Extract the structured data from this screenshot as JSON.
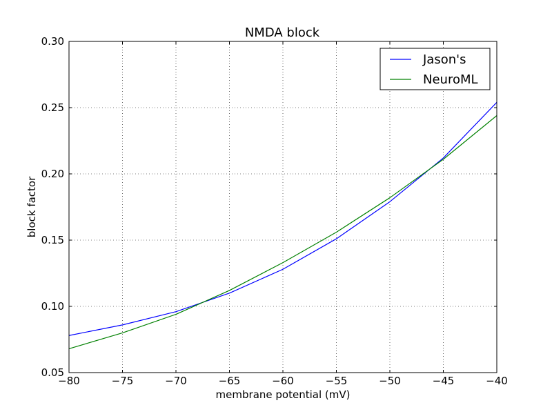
{
  "chart_data": {
    "type": "line",
    "title": "NMDA block",
    "xlabel": "membrane potential (mV)",
    "ylabel": "block factor",
    "xlim": [
      -80,
      -40
    ],
    "ylim": [
      0.05,
      0.3
    ],
    "x_ticks": [
      -80,
      -75,
      -70,
      -65,
      -60,
      -55,
      -50,
      -45,
      -40
    ],
    "x_tick_labels": [
      "−80",
      "−75",
      "−70",
      "−65",
      "−60",
      "−55",
      "−50",
      "−45",
      "−40"
    ],
    "y_ticks": [
      0.05,
      0.1,
      0.15,
      0.2,
      0.25,
      0.3
    ],
    "y_tick_labels": [
      "0.05",
      "0.10",
      "0.15",
      "0.20",
      "0.25",
      "0.30"
    ],
    "grid": true,
    "legend_position": "top-right",
    "series": [
      {
        "name": "Jason's",
        "color": "#0000ff",
        "x": [
          -80,
          -75,
          -70,
          -65,
          -60,
          -55,
          -50,
          -45,
          -40
        ],
        "y": [
          0.078,
          0.086,
          0.096,
          0.11,
          0.128,
          0.151,
          0.179,
          0.212,
          0.254
        ]
      },
      {
        "name": "NeuroML",
        "color": "#008000",
        "x": [
          -80,
          -75,
          -70,
          -65,
          -60,
          -55,
          -50,
          -45,
          -40
        ],
        "y": [
          0.068,
          0.08,
          0.094,
          0.112,
          0.133,
          0.156,
          0.182,
          0.211,
          0.244
        ]
      }
    ]
  }
}
